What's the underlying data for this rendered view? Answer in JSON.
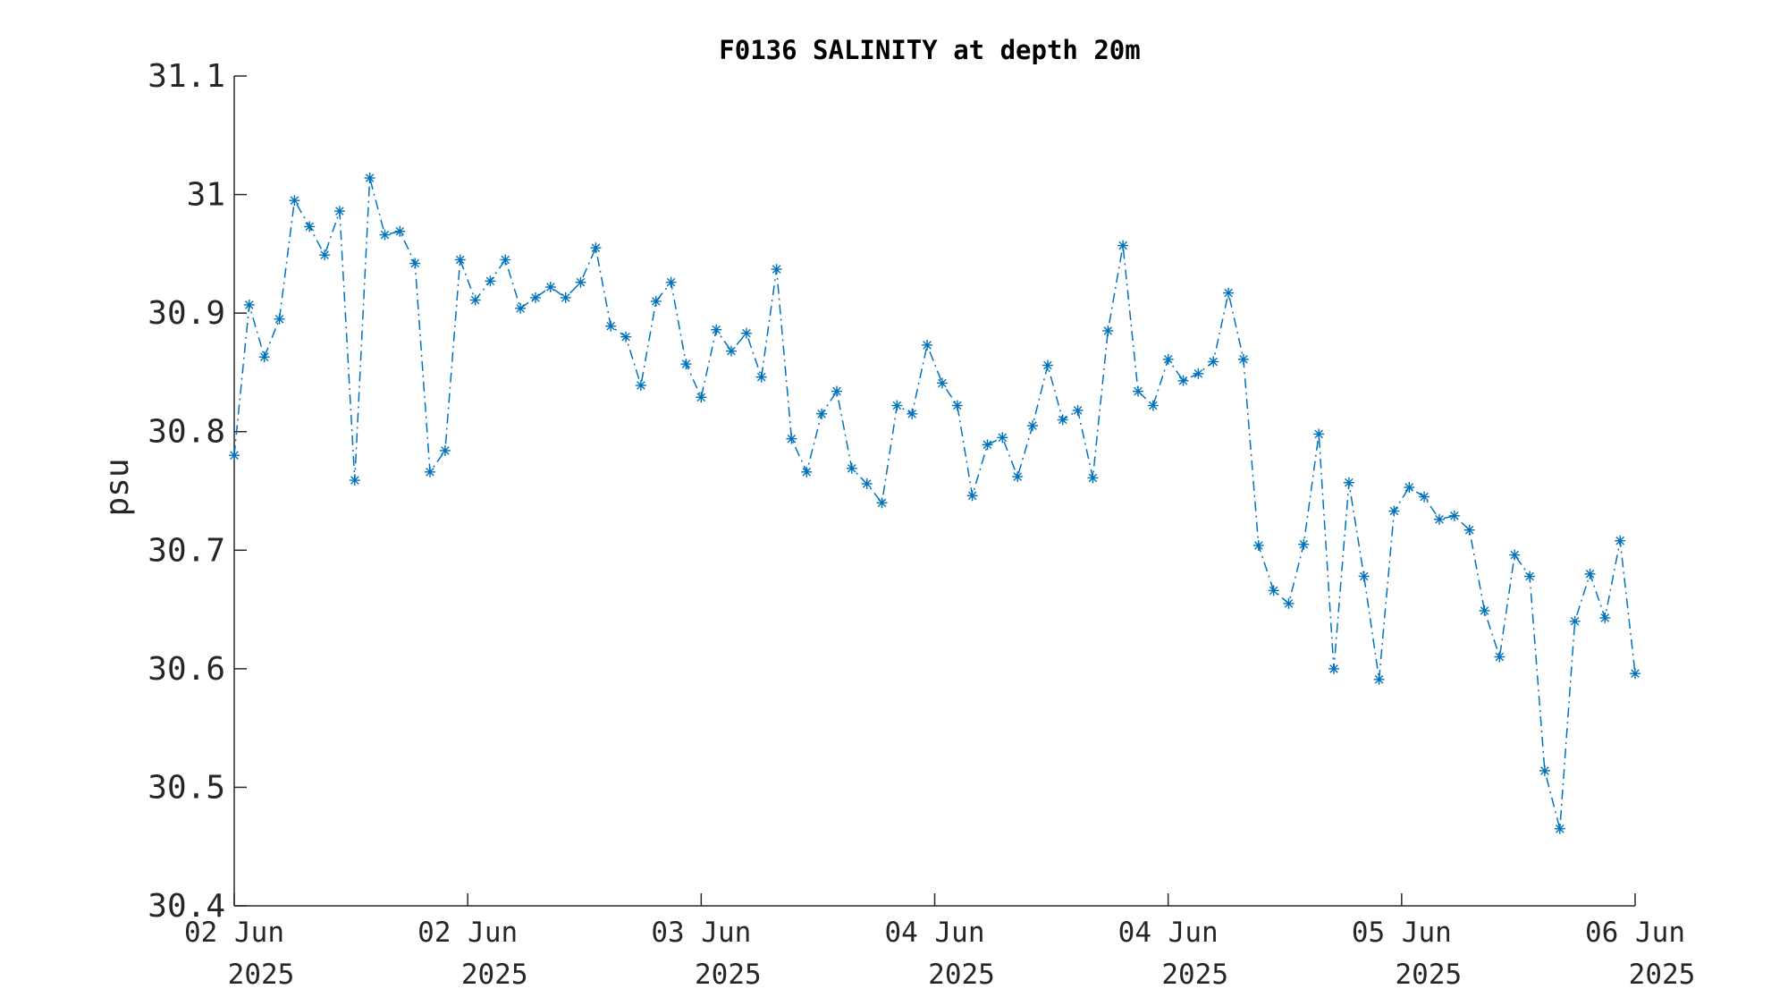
{
  "chart_data": {
    "type": "line",
    "title": "F0136 SALINITY at depth 20m",
    "ylabel": "psu",
    "xlabel": "",
    "ylim": [
      30.4,
      31.1
    ],
    "yticks": [
      "30.4",
      "30.5",
      "30.6",
      "30.7",
      "30.8",
      "30.9",
      "31",
      "31.1"
    ],
    "xticks": [
      {
        "line1": "02 Jun",
        "line2": "2025"
      },
      {
        "line1": "02 Jun",
        "line2": "2025"
      },
      {
        "line1": "03 Jun",
        "line2": "2025"
      },
      {
        "line1": "04 Jun",
        "line2": "2025"
      },
      {
        "line1": "04 Jun",
        "line2": "2025"
      },
      {
        "line1": "05 Jun",
        "line2": "2025"
      },
      {
        "line1": "06 Jun",
        "line2": "2025"
      }
    ],
    "grid": false,
    "legend": "none",
    "series": [
      {
        "color": "#0072BD",
        "line_style": "dash-dot",
        "marker": "asterisk",
        "values": [
          30.78,
          30.907,
          30.863,
          30.895,
          30.995,
          30.973,
          30.949,
          30.986,
          30.759,
          31.014,
          30.966,
          30.969,
          30.942,
          30.766,
          30.784,
          30.945,
          30.911,
          30.927,
          30.945,
          30.904,
          30.913,
          30.922,
          30.913,
          30.926,
          30.955,
          30.889,
          30.88,
          30.839,
          30.91,
          30.926,
          30.857,
          30.829,
          30.886,
          30.868,
          30.883,
          30.846,
          30.937,
          30.794,
          30.766,
          30.815,
          30.834,
          30.769,
          30.756,
          30.74,
          30.822,
          30.815,
          30.873,
          30.841,
          30.822,
          30.746,
          30.789,
          30.795,
          30.762,
          30.805,
          30.856,
          30.81,
          30.818,
          30.761,
          30.885,
          30.957,
          30.834,
          30.822,
          30.861,
          30.843,
          30.849,
          30.859,
          30.917,
          30.861,
          30.704,
          30.666,
          30.655,
          30.705,
          30.798,
          30.6,
          30.757,
          30.678,
          30.591,
          30.733,
          30.753,
          30.745,
          30.726,
          30.729,
          30.717,
          30.649,
          30.61,
          30.696,
          30.678,
          30.514,
          30.465,
          30.64,
          30.68,
          30.643,
          30.708,
          30.596
        ]
      }
    ]
  }
}
